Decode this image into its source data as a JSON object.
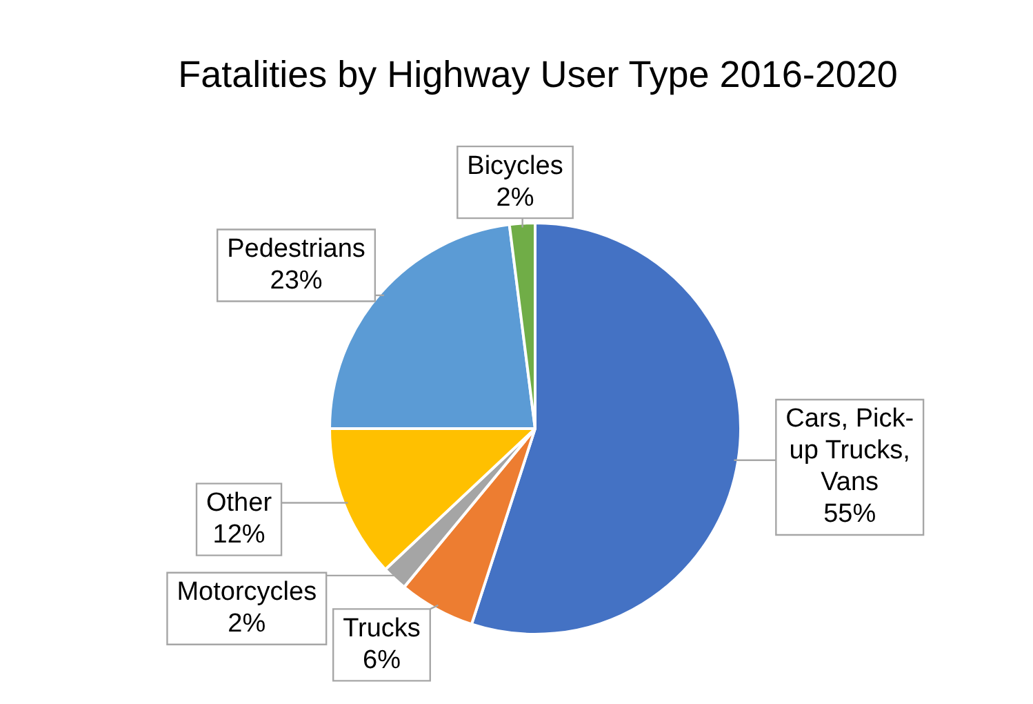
{
  "chart_data": {
    "type": "pie",
    "title": "Fatalities by Highway User Type 2016-2020",
    "categories": [
      "Cars, Pick-up Trucks, Vans",
      "Trucks",
      "Motorcycles",
      "Other",
      "Pedestrians",
      "Bicycles"
    ],
    "values": [
      55,
      6,
      2,
      12,
      23,
      2
    ],
    "value_labels": [
      "55%",
      "6%",
      "2%",
      "12%",
      "23%",
      "2%"
    ],
    "colors": [
      "#4472c4",
      "#ed7d31",
      "#a5a5a5",
      "#ffc000",
      "#5b9bd5",
      "#70ad47"
    ],
    "legend": false
  }
}
